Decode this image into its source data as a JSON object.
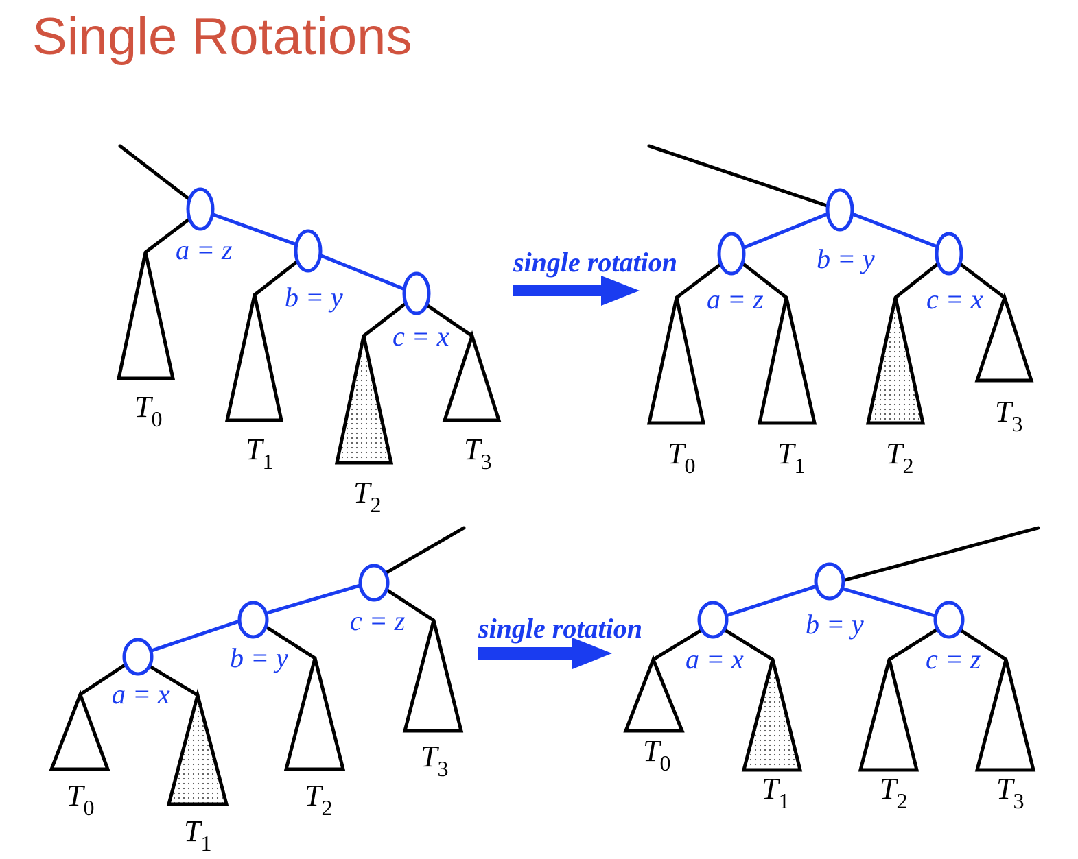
{
  "title": "Single Rotations",
  "arrow_label": "single rotation",
  "colors": {
    "title": "#d0533f",
    "tree_path": "#1a3cf0",
    "edges": "#000000"
  },
  "top": {
    "before": {
      "labels": {
        "a": "a = z",
        "b": "b = y",
        "c": "c = x"
      },
      "subtrees": [
        {
          "base": "T",
          "sub": "0",
          "shaded": false
        },
        {
          "base": "T",
          "sub": "1",
          "shaded": false
        },
        {
          "base": "T",
          "sub": "2",
          "shaded": true
        },
        {
          "base": "T",
          "sub": "3",
          "shaded": false
        }
      ]
    },
    "after": {
      "labels": {
        "a": "a = z",
        "b": "b = y",
        "c": "c = x"
      },
      "subtrees": [
        {
          "base": "T",
          "sub": "0",
          "shaded": false
        },
        {
          "base": "T",
          "sub": "1",
          "shaded": false
        },
        {
          "base": "T",
          "sub": "2",
          "shaded": true
        },
        {
          "base": "T",
          "sub": "3",
          "shaded": false
        }
      ]
    }
  },
  "bottom": {
    "before": {
      "labels": {
        "a": "a = x",
        "b": "b = y",
        "c": "c = z"
      },
      "subtrees": [
        {
          "base": "T",
          "sub": "0",
          "shaded": false
        },
        {
          "base": "T",
          "sub": "1",
          "shaded": true
        },
        {
          "base": "T",
          "sub": "2",
          "shaded": false
        },
        {
          "base": "T",
          "sub": "3",
          "shaded": false
        }
      ]
    },
    "after": {
      "labels": {
        "a": "a = x",
        "b": "b = y",
        "c": "c = z"
      },
      "subtrees": [
        {
          "base": "T",
          "sub": "0",
          "shaded": false
        },
        {
          "base": "T",
          "sub": "1",
          "shaded": true
        },
        {
          "base": "T",
          "sub": "2",
          "shaded": false
        },
        {
          "base": "T",
          "sub": "3",
          "shaded": false
        }
      ]
    }
  }
}
